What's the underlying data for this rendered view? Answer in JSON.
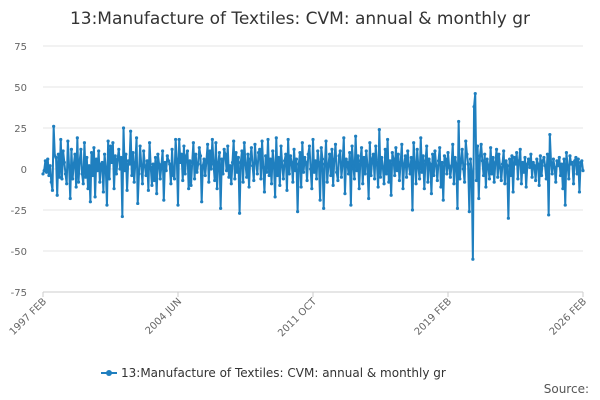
{
  "chart_data": {
    "type": "line",
    "title": "13:Manufacture of Textiles: CVM: annual & monthly gr",
    "xlabel": "",
    "ylabel": "",
    "ylim": [
      -75,
      75
    ],
    "yticks": [
      "75",
      "50",
      "25",
      "0",
      "-25",
      "-50",
      "-75"
    ],
    "xtick_labels": [
      "1997 FEB",
      "2004 JUN",
      "2011 OCT",
      "2019 FEB",
      "2026 FEB"
    ],
    "grid": true,
    "legend_position": "bottom",
    "series": [
      {
        "name": "13:Manufacture of Textiles: CVM: annual & monthly gr",
        "color": "#1f7fbf",
        "x_start": "1997 FEB",
        "x_end": "2026 FEB",
        "values": [
          -3,
          -1,
          5,
          -2,
          6,
          -4,
          2,
          -8,
          -13,
          26,
          8,
          7,
          -16,
          9,
          -5,
          18,
          -6,
          11,
          4,
          -3,
          -9,
          17,
          2,
          -18,
          12,
          -6,
          3,
          9,
          -11,
          19,
          -8,
          5,
          12,
          -3,
          -9,
          16,
          -5,
          7,
          -12,
          2,
          -20,
          10,
          -4,
          13,
          -17,
          6,
          -1,
          11,
          -8,
          3,
          4,
          -14,
          9,
          1,
          -22,
          17,
          -6,
          14,
          4,
          16,
          -12,
          8,
          -3,
          6,
          12,
          0,
          7,
          -29,
          25,
          -1,
          9,
          -13,
          5,
          3,
          23,
          -4,
          10,
          -8,
          4,
          19,
          -21,
          -3,
          14,
          2,
          -9,
          11,
          2,
          -4,
          5,
          -13,
          16,
          1,
          -10,
          3,
          -7,
          7,
          -15,
          9,
          3,
          -6,
          2,
          11,
          -19,
          4,
          -1,
          8,
          5,
          3,
          -9,
          12,
          -4,
          -6,
          18,
          6,
          -22,
          18,
          4,
          9,
          -7,
          14,
          -3,
          8,
          11,
          -12,
          5,
          -10,
          4,
          16,
          -6,
          9,
          -2,
          3,
          13,
          8,
          -20,
          2,
          6,
          -4,
          5,
          15,
          -8,
          11,
          0,
          18,
          3,
          -7,
          16,
          -12,
          4,
          10,
          -24,
          6,
          -3,
          12,
          9,
          -1,
          14,
          -5,
          2,
          -9,
          4,
          17,
          -6,
          10,
          -2,
          7,
          -27,
          4,
          11,
          -8,
          16,
          3,
          -5,
          9,
          -11,
          6,
          13,
          2,
          -7,
          15,
          4,
          -3,
          10,
          12,
          -6,
          17,
          1,
          -14,
          8,
          -2,
          18,
          -4,
          6,
          -9,
          11,
          3,
          -17,
          19,
          -4,
          7,
          -10,
          14,
          2,
          -6,
          5,
          9,
          -13,
          18,
          -3,
          8,
          4,
          -8,
          12,
          -1,
          6,
          -26,
          3,
          10,
          -11,
          16,
          -2,
          7,
          4,
          -7,
          9,
          14,
          0,
          -12,
          18,
          -2,
          5,
          -6,
          11,
          4,
          -19,
          13,
          6,
          -24,
          3,
          17,
          -8,
          2,
          9,
          -4,
          12,
          -10,
          6,
          15,
          -2,
          -7,
          8,
          11,
          -5,
          3,
          19,
          -15,
          6,
          4,
          -3,
          10,
          -22,
          14,
          2,
          -6,
          20,
          -1,
          8,
          -12,
          5,
          13,
          -9,
          7,
          -3,
          11,
          2,
          -18,
          16,
          -4,
          6,
          9,
          -6,
          14,
          3,
          -11,
          24,
          -5,
          7,
          1,
          -9,
          12,
          -3,
          18,
          -8,
          5,
          -16,
          10,
          6,
          -4,
          13,
          -1,
          9,
          -7,
          4,
          15,
          -12,
          3,
          8,
          -5,
          11,
          2,
          -3,
          7,
          -25,
          16,
          4,
          -9,
          12,
          1,
          -6,
          19,
          -2,
          8,
          -12,
          5,
          14,
          -8,
          6,
          3,
          -15,
          9,
          -4,
          11,
          2,
          -7,
          5,
          13,
          -11,
          4,
          -19,
          8,
          6,
          -3,
          10,
          1,
          -5,
          2,
          15,
          -9,
          7,
          3,
          -24,
          29,
          -6,
          4,
          12,
          0,
          -8,
          17,
          9,
          3,
          -26,
          6,
          -2,
          -55,
          38,
          46,
          -7,
          14,
          -18,
          8,
          15,
          5,
          -4,
          9,
          -11,
          6,
          2,
          -6,
          13,
          -3,
          7,
          -8,
          4,
          12,
          -5,
          9,
          1,
          -7,
          3,
          11,
          -9,
          5,
          2,
          -30,
          6,
          -4,
          8,
          -14,
          7,
          3,
          10,
          -6,
          5,
          12,
          -9,
          4,
          -2,
          7,
          -11,
          3,
          6,
          1,
          9,
          -5,
          4,
          2,
          -7,
          6,
          3,
          -10,
          8,
          -4,
          5,
          7,
          2,
          -6,
          9,
          -28,
          21,
          4,
          -3,
          6,
          1,
          -8,
          5,
          2,
          7,
          -4,
          3,
          -12,
          6,
          -22,
          10,
          2,
          -6,
          8,
          3,
          4,
          -9,
          5,
          7,
          -3,
          6,
          -14,
          4,
          5,
          -1
        ]
      }
    ]
  },
  "footer": {
    "source_label": "Source:"
  }
}
